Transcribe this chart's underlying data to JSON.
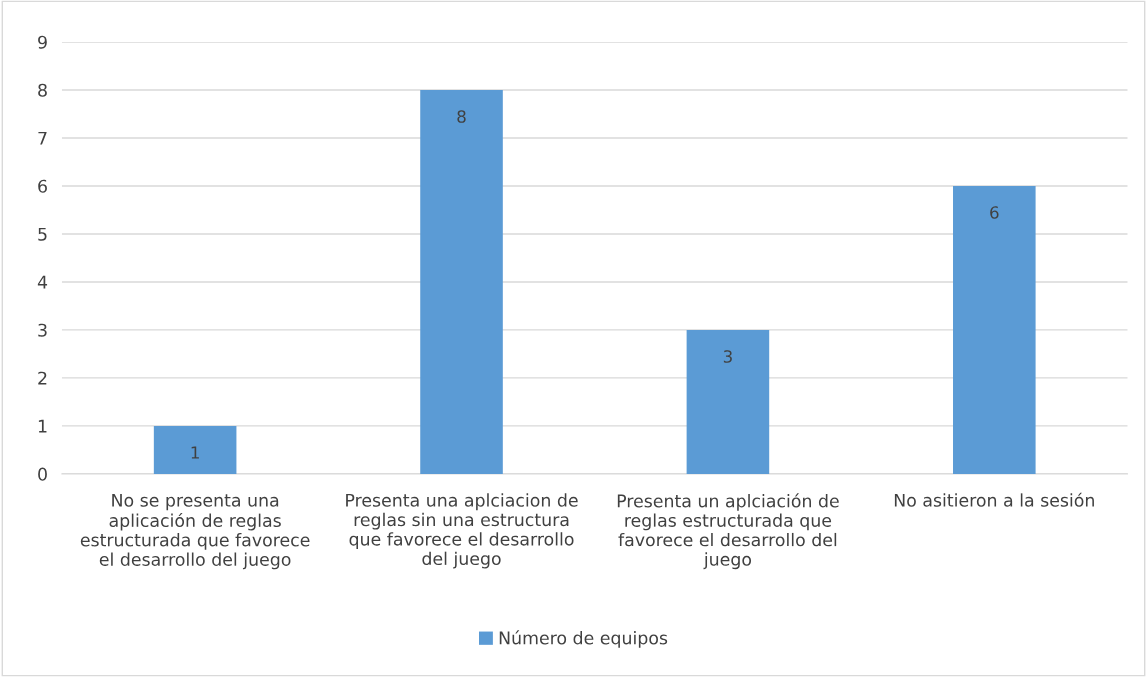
{
  "chart_data": {
    "type": "bar",
    "categories": [
      "No se presenta una\naplicación de reglas\nestructurada que favorece\nel desarrollo del juego",
      "Presenta una aplciacion de\nreglas sin una estructura\nque favorece el desarrollo\ndel juego",
      "Presenta un aplciación de\nreglas estructurada que\nfavorece el desarrollo del\njuego",
      "No asitieron a la sesión"
    ],
    "series": [
      {
        "name": "Número de equipos",
        "color": "#5b9bd5",
        "values": [
          1,
          8,
          3,
          6
        ]
      }
    ],
    "ylim": [
      0,
      9
    ],
    "yticks": [
      0,
      1,
      2,
      3,
      4,
      5,
      6,
      7,
      8,
      9
    ],
    "grid": "y",
    "legend": "bottom",
    "data_labels": true
  }
}
